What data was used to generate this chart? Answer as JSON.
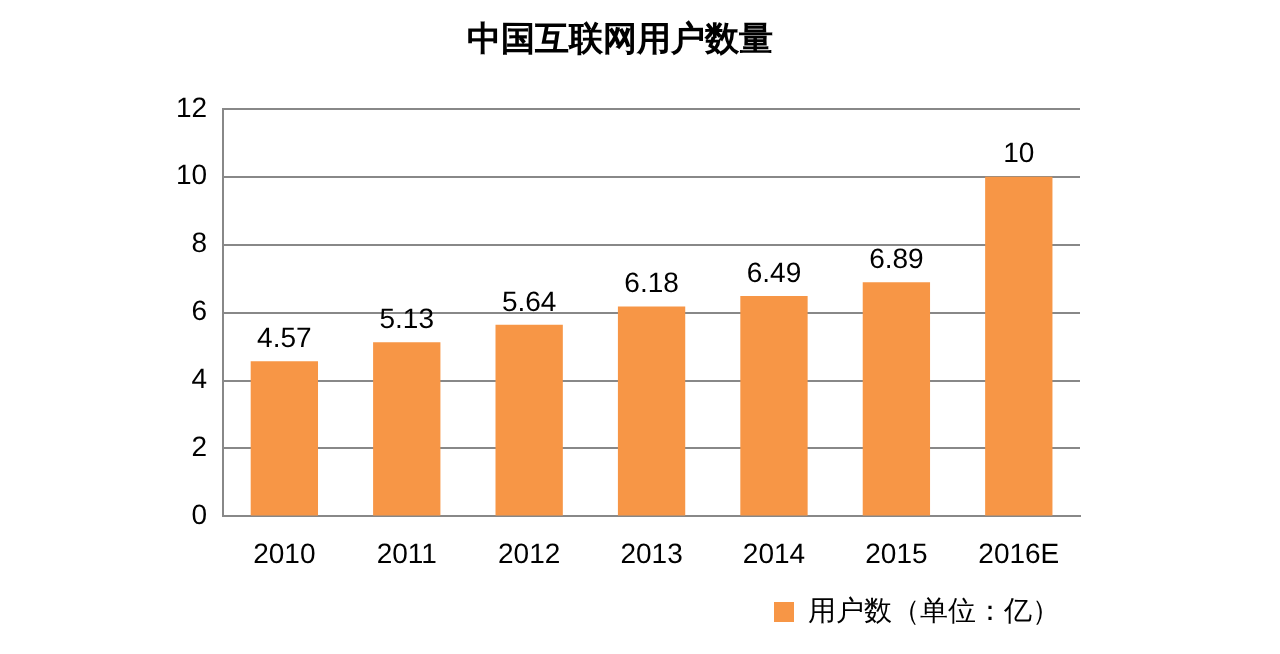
{
  "chart_data": {
    "type": "bar",
    "title": "中国互联网用户数量",
    "categories": [
      "2010",
      "2011",
      "2012",
      "2013",
      "2014",
      "2015",
      "2016E"
    ],
    "series": [
      {
        "name": "用户数（单位：亿）",
        "color": "#f79646",
        "values": [
          4.57,
          5.13,
          5.64,
          6.18,
          6.49,
          6.89,
          10
        ]
      }
    ],
    "ylim": [
      0,
      12
    ],
    "yticks": [
      0,
      2,
      4,
      6,
      8,
      10,
      12
    ],
    "grid": "y",
    "legend": "bottom right",
    "data_labels": true
  }
}
